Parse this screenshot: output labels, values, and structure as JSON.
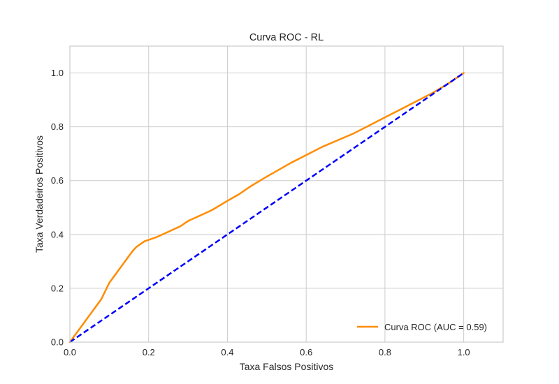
{
  "chart_data": {
    "type": "line",
    "title": "Curva ROC - RL",
    "xlabel": "Taxa Falsos Positivos",
    "ylabel": "Taxa Verdadeiros Positivos",
    "xlim": [
      0.0,
      1.1
    ],
    "ylim": [
      0.0,
      1.1
    ],
    "xticks": [
      0.0,
      0.2,
      0.4,
      0.6,
      0.8,
      1.0
    ],
    "yticks": [
      0.0,
      0.2,
      0.4,
      0.6,
      0.8,
      1.0
    ],
    "xtick_labels": [
      "0.0",
      "0.2",
      "0.4",
      "0.6",
      "0.8",
      "1.0"
    ],
    "ytick_labels": [
      "0.0",
      "0.2",
      "0.4",
      "0.6",
      "0.8",
      "1.0"
    ],
    "grid": true,
    "legend_position": "lower-right",
    "series": [
      {
        "name": "Curva ROC (AUC = 0.59)",
        "color": "#ff8c00",
        "style": "solid",
        "x": [
          0.0,
          0.01,
          0.02,
          0.03,
          0.04,
          0.05,
          0.06,
          0.07,
          0.08,
          0.09,
          0.1,
          0.11,
          0.12,
          0.13,
          0.14,
          0.15,
          0.16,
          0.17,
          0.18,
          0.19,
          0.2,
          0.22,
          0.25,
          0.28,
          0.3,
          0.33,
          0.36,
          0.4,
          0.43,
          0.46,
          0.5,
          0.53,
          0.56,
          0.6,
          0.64,
          0.68,
          0.72,
          0.76,
          0.8,
          0.84,
          0.88,
          0.92,
          0.96,
          1.0
        ],
        "y": [
          0.0,
          0.02,
          0.04,
          0.06,
          0.08,
          0.1,
          0.12,
          0.14,
          0.16,
          0.19,
          0.22,
          0.24,
          0.26,
          0.28,
          0.3,
          0.32,
          0.34,
          0.355,
          0.365,
          0.375,
          0.38,
          0.39,
          0.41,
          0.43,
          0.45,
          0.47,
          0.49,
          0.525,
          0.55,
          0.58,
          0.615,
          0.64,
          0.665,
          0.695,
          0.725,
          0.75,
          0.775,
          0.805,
          0.835,
          0.865,
          0.895,
          0.925,
          0.96,
          1.0
        ]
      },
      {
        "name": "",
        "color": "#0000ff",
        "style": "dashed",
        "x": [
          0.0,
          1.0
        ],
        "y": [
          0.0,
          1.0
        ]
      }
    ]
  }
}
